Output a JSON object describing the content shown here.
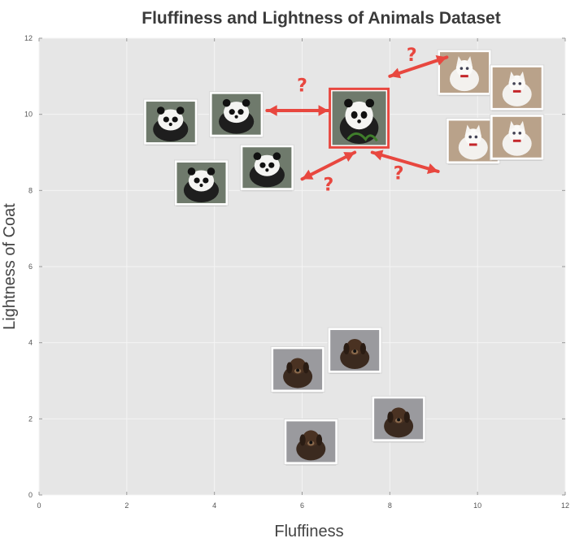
{
  "chart_data": {
    "type": "scatter",
    "title": "Fluffiness and Lightness of Animals Dataset",
    "xlabel": "Fluffiness",
    "ylabel": "Lightness of Coat",
    "xlim": [
      0,
      12
    ],
    "ylim": [
      0,
      12
    ],
    "xticks": [
      0,
      2,
      4,
      6,
      8,
      10,
      12
    ],
    "yticks": [
      0,
      2,
      4,
      6,
      8,
      10,
      12
    ],
    "grid": true,
    "background": "#e6e6e6",
    "gridline_color": "#f4f4f4",
    "accent_color": "#e8473f",
    "query_annotation": "?",
    "query_point": {
      "label": "panda",
      "x": 7.3,
      "y": 9.9
    },
    "points": [
      {
        "label": "panda",
        "x": 3.0,
        "y": 9.8
      },
      {
        "label": "panda",
        "x": 4.5,
        "y": 10.0
      },
      {
        "label": "panda",
        "x": 3.7,
        "y": 8.2
      },
      {
        "label": "panda",
        "x": 5.2,
        "y": 8.6
      },
      {
        "label": "cat",
        "x": 9.7,
        "y": 11.1
      },
      {
        "label": "cat",
        "x": 10.9,
        "y": 10.7
      },
      {
        "label": "cat",
        "x": 9.9,
        "y": 9.3
      },
      {
        "label": "cat",
        "x": 10.9,
        "y": 9.4
      },
      {
        "label": "dog",
        "x": 5.9,
        "y": 3.3
      },
      {
        "label": "dog",
        "x": 7.2,
        "y": 3.8
      },
      {
        "label": "dog",
        "x": 6.2,
        "y": 1.4
      },
      {
        "label": "dog",
        "x": 8.2,
        "y": 2.0
      }
    ],
    "comparisons": [
      {
        "from": [
          5.2,
          10.1
        ],
        "to": [
          6.6,
          10.1
        ],
        "q": [
          6.0,
          10.6
        ]
      },
      {
        "from": [
          8.0,
          11.0
        ],
        "to": [
          9.3,
          11.5
        ],
        "q": [
          8.5,
          11.4
        ]
      },
      {
        "from": [
          6.0,
          8.3
        ],
        "to": [
          7.2,
          9.0
        ],
        "q": [
          6.6,
          8.0
        ]
      },
      {
        "from": [
          7.6,
          9.0
        ],
        "to": [
          9.1,
          8.5
        ],
        "q": [
          8.2,
          8.3
        ]
      }
    ]
  }
}
